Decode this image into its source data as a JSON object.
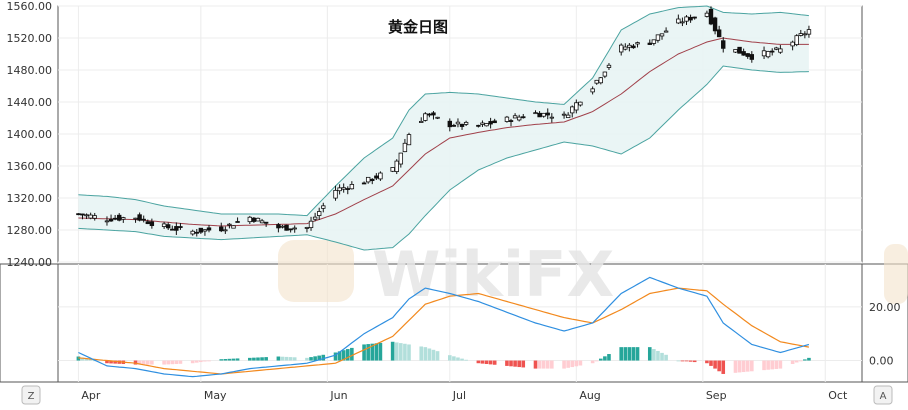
{
  "chart_data": [
    {
      "type": "candlestick",
      "title": "黄金日图",
      "ylim": [
        1240,
        1560
      ],
      "y_ticks": [
        "1560.00",
        "1520.00",
        "1480.00",
        "1440.00",
        "1400.00",
        "1360.00",
        "1320.00",
        "1280.00",
        "1240.00"
      ],
      "x_ticks": [
        "Apr",
        "May",
        "Jun",
        "Jul",
        "Aug",
        "Sep",
        "Oct"
      ],
      "grid": true,
      "legend": "none",
      "series": [
        {
          "kind": "close_path_approx",
          "x": [
            "2019-04-01",
            "2019-04-08",
            "2019-04-15",
            "2019-04-22",
            "2019-04-29",
            "2019-05-06",
            "2019-05-13",
            "2019-05-20",
            "2019-05-27",
            "2019-06-03",
            "2019-06-10",
            "2019-06-17",
            "2019-06-21",
            "2019-06-25",
            "2019-07-01",
            "2019-07-08",
            "2019-07-15",
            "2019-07-22",
            "2019-07-29",
            "2019-08-05",
            "2019-08-12",
            "2019-08-19",
            "2019-08-26",
            "2019-09-02",
            "2019-09-06",
            "2019-09-13",
            "2019-09-20",
            "2019-09-27"
          ],
          "values": [
            1300,
            1294,
            1296,
            1284,
            1278,
            1282,
            1296,
            1283,
            1283,
            1330,
            1340,
            1355,
            1400,
            1425,
            1412,
            1410,
            1418,
            1426,
            1422,
            1460,
            1508,
            1515,
            1540,
            1552,
            1510,
            1497,
            1505,
            1530
          ]
        },
        {
          "kind": "bollinger_upper_approx",
          "values": [
            1324,
            1322,
            1318,
            1310,
            1305,
            1300,
            1300,
            1300,
            1298,
            1335,
            1370,
            1395,
            1430,
            1450,
            1452,
            1450,
            1445,
            1440,
            1437,
            1470,
            1530,
            1550,
            1558,
            1560,
            1552,
            1550,
            1552,
            1548
          ]
        },
        {
          "kind": "bollinger_middle_approx",
          "values": [
            1295,
            1294,
            1293,
            1290,
            1287,
            1285,
            1286,
            1287,
            1288,
            1300,
            1318,
            1335,
            1355,
            1375,
            1395,
            1402,
            1408,
            1412,
            1415,
            1428,
            1450,
            1478,
            1500,
            1515,
            1520,
            1515,
            1512,
            1512
          ]
        },
        {
          "kind": "bollinger_lower_approx",
          "values": [
            1282,
            1280,
            1278,
            1272,
            1270,
            1268,
            1270,
            1272,
            1274,
            1265,
            1255,
            1258,
            1275,
            1298,
            1330,
            1355,
            1370,
            1380,
            1390,
            1385,
            1375,
            1395,
            1430,
            1462,
            1485,
            1480,
            1477,
            1478
          ]
        }
      ]
    },
    {
      "type": "bar",
      "y_ticks": [
        "20.00",
        "0.00"
      ],
      "ylim": [
        -8,
        36
      ],
      "x_ticks": [
        "Apr",
        "May",
        "Jun",
        "Jul",
        "Aug",
        "Sep",
        "Oct"
      ],
      "grid": true,
      "series": [
        {
          "kind": "macd_line_approx",
          "x": [
            "2019-04-01",
            "2019-04-08",
            "2019-04-15",
            "2019-04-22",
            "2019-04-29",
            "2019-05-06",
            "2019-05-13",
            "2019-05-20",
            "2019-05-27",
            "2019-06-03",
            "2019-06-10",
            "2019-06-17",
            "2019-06-21",
            "2019-06-25",
            "2019-07-01",
            "2019-07-08",
            "2019-07-15",
            "2019-07-22",
            "2019-07-29",
            "2019-08-05",
            "2019-08-12",
            "2019-08-19",
            "2019-08-26",
            "2019-09-02",
            "2019-09-06",
            "2019-09-13",
            "2019-09-20",
            "2019-09-27"
          ],
          "values": [
            3,
            -2,
            -3,
            -5,
            -6,
            -5,
            -3,
            -2,
            -1,
            2,
            10,
            16,
            23,
            27,
            25,
            22,
            18,
            14,
            11,
            14,
            25,
            31,
            27,
            24,
            14,
            6,
            3,
            6
          ]
        },
        {
          "kind": "signal_line_approx",
          "values": [
            1,
            0,
            -1,
            -3,
            -4,
            -5,
            -4,
            -3,
            -2,
            -1,
            4,
            9,
            15,
            21,
            24,
            25,
            22,
            19,
            16,
            14,
            19,
            25,
            27,
            26,
            21,
            13,
            7,
            5
          ]
        },
        {
          "kind": "histogram_approx",
          "values": [
            1.5,
            -1,
            -1.5,
            -1.5,
            -1,
            0.5,
            1,
            1.5,
            1,
            3,
            6,
            7,
            6,
            5,
            2,
            -1,
            -2,
            -3,
            -3,
            -1,
            5,
            5,
            0,
            -1,
            -5,
            -4,
            -3,
            1
          ]
        }
      ]
    }
  ],
  "footer": {
    "left_button": "Z",
    "right_button": "A"
  },
  "watermark": "WikiFX"
}
